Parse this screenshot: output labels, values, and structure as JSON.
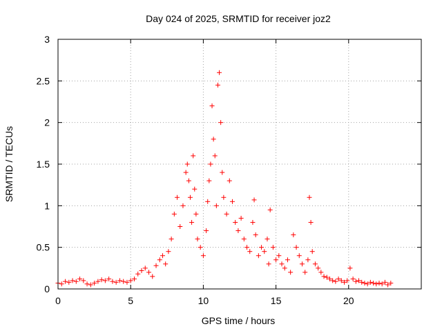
{
  "chart_data": {
    "type": "scatter",
    "title": "Day 024 of 2025, SRMTID for receiver joz2",
    "xlabel": "GPS time / hours",
    "ylabel": "SRMTID / TECUs",
    "xlim": [
      0,
      25
    ],
    "ylim": [
      0,
      3
    ],
    "xticks": [
      "0",
      "5",
      "10",
      "15",
      "20"
    ],
    "xtick_values": [
      0,
      5,
      10,
      15,
      20
    ],
    "yticks": [
      "0",
      "0.5",
      "1",
      "1.5",
      "2",
      "2.5",
      "3"
    ],
    "ytick_values": [
      0,
      0.5,
      1,
      1.5,
      2,
      2.5,
      3
    ],
    "grid": true,
    "marker": "+",
    "series": [
      {
        "name": "SRMTID",
        "color": "#ff0000",
        "x": [
          0.0,
          0.25,
          0.5,
          0.75,
          1.0,
          1.25,
          1.5,
          1.75,
          2.0,
          2.25,
          2.5,
          2.75,
          3.0,
          3.25,
          3.5,
          3.75,
          4.0,
          4.25,
          4.5,
          4.75,
          5.0,
          5.25,
          5.5,
          5.75,
          6.0,
          6.25,
          6.5,
          6.75,
          7.0,
          7.2,
          7.4,
          7.6,
          7.8,
          8.0,
          8.2,
          8.4,
          8.6,
          8.8,
          8.9,
          9.0,
          9.1,
          9.2,
          9.3,
          9.4,
          9.5,
          9.6,
          9.8,
          10.0,
          10.2,
          10.3,
          10.4,
          10.5,
          10.6,
          10.7,
          10.8,
          10.9,
          11.0,
          11.1,
          11.2,
          11.3,
          11.4,
          11.6,
          11.8,
          12.0,
          12.2,
          12.4,
          12.6,
          12.8,
          13.0,
          13.2,
          13.4,
          13.5,
          13.6,
          13.8,
          14.0,
          14.2,
          14.4,
          14.5,
          14.6,
          14.8,
          15.0,
          15.2,
          15.4,
          15.6,
          15.8,
          16.0,
          16.2,
          16.4,
          16.6,
          16.8,
          17.0,
          17.2,
          17.3,
          17.4,
          17.5,
          17.7,
          17.9,
          18.1,
          18.3,
          18.5,
          18.7,
          18.9,
          19.1,
          19.3,
          19.5,
          19.7,
          19.9,
          20.1,
          20.3,
          20.5,
          20.7,
          20.9,
          21.1,
          21.3,
          21.5,
          21.7,
          21.9,
          22.1,
          22.3,
          22.5,
          22.7,
          22.9
        ],
        "y": [
          0.07,
          0.06,
          0.09,
          0.08,
          0.1,
          0.09,
          0.12,
          0.1,
          0.06,
          0.05,
          0.07,
          0.09,
          0.11,
          0.1,
          0.12,
          0.09,
          0.08,
          0.1,
          0.09,
          0.08,
          0.1,
          0.12,
          0.18,
          0.22,
          0.25,
          0.2,
          0.15,
          0.28,
          0.35,
          0.4,
          0.3,
          0.45,
          0.6,
          0.9,
          1.1,
          0.75,
          1.0,
          1.4,
          1.5,
          1.3,
          1.1,
          0.8,
          1.6,
          1.2,
          0.9,
          0.6,
          0.5,
          0.4,
          0.7,
          1.05,
          1.3,
          1.5,
          2.2,
          1.8,
          1.6,
          1.0,
          2.45,
          2.6,
          2.0,
          1.4,
          1.1,
          0.9,
          1.3,
          1.05,
          0.8,
          0.7,
          0.85,
          0.6,
          0.5,
          0.45,
          0.8,
          1.07,
          0.65,
          0.4,
          0.5,
          0.45,
          0.6,
          0.3,
          0.95,
          0.5,
          0.35,
          0.4,
          0.3,
          0.25,
          0.35,
          0.2,
          0.65,
          0.5,
          0.4,
          0.3,
          0.2,
          0.35,
          1.1,
          0.8,
          0.45,
          0.3,
          0.25,
          0.2,
          0.15,
          0.14,
          0.12,
          0.1,
          0.09,
          0.12,
          0.1,
          0.08,
          0.1,
          0.25,
          0.12,
          0.09,
          0.1,
          0.08,
          0.07,
          0.06,
          0.08,
          0.07,
          0.06,
          0.07,
          0.06,
          0.08,
          0.05,
          0.07
        ]
      }
    ]
  }
}
